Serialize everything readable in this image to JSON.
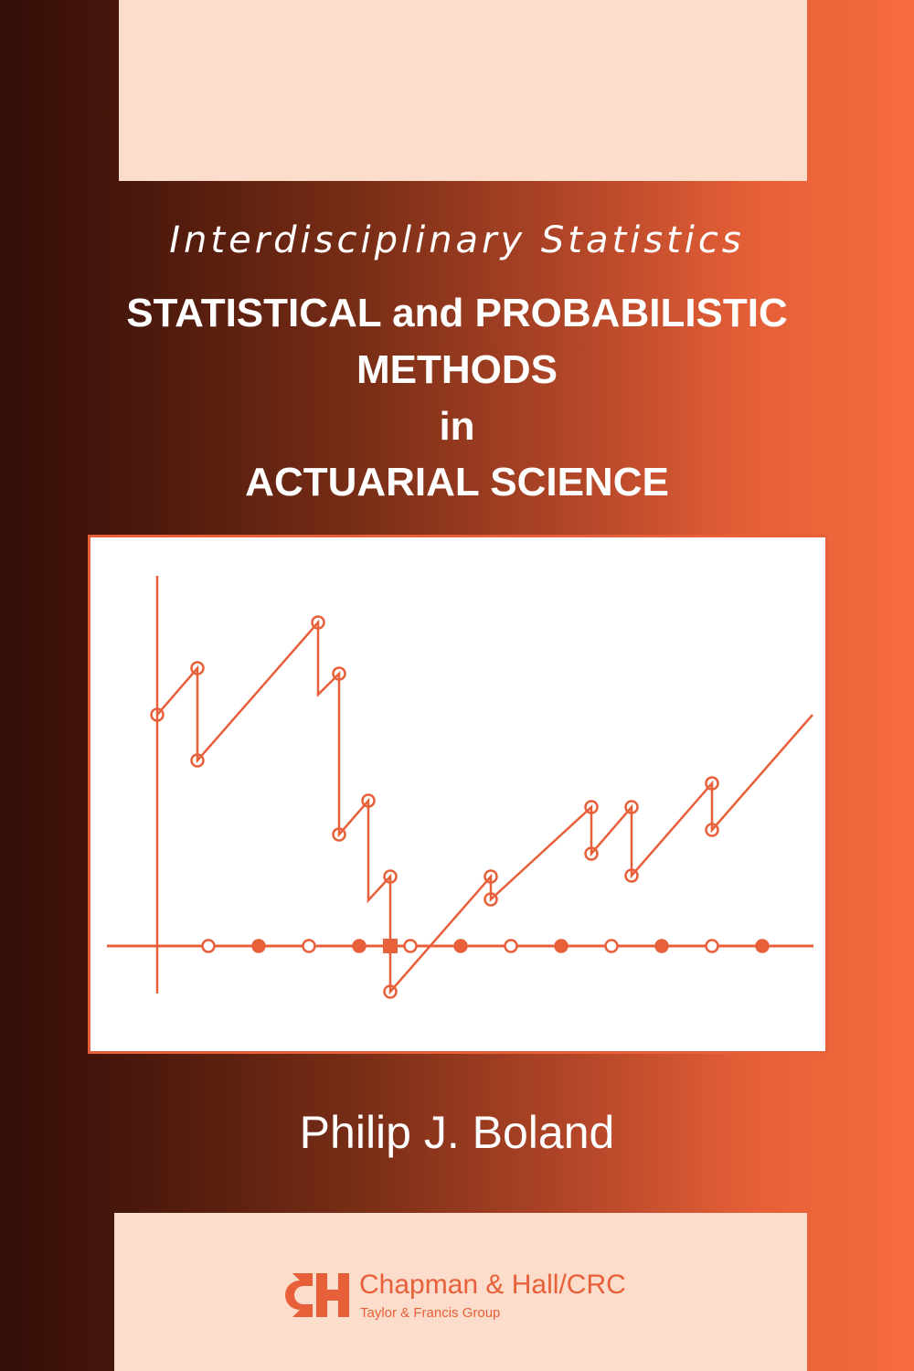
{
  "cover": {
    "series": "Interdisciplinary Statistics",
    "title_lines": [
      "STATISTICAL and PROBABILISTIC",
      "METHODS",
      "in",
      "ACTUARIAL SCIENCE"
    ],
    "author": "Philip J. Boland",
    "publisher": "Chapman & Hall/CRC",
    "publisher_group": "Taylor & Francis Group",
    "logo_text": "CH"
  },
  "colors": {
    "accent": "#e8603a",
    "panel_pink": "#fcdcca",
    "dark": "#330d07",
    "bright": "#f76b3f"
  }
}
